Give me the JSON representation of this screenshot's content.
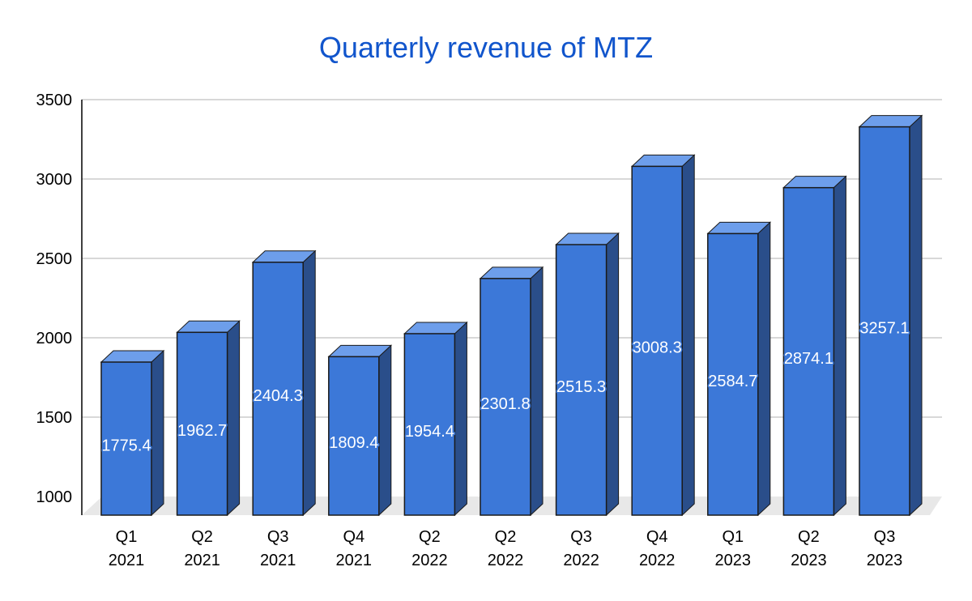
{
  "chart_data": {
    "type": "bar",
    "title": "Quarterly revenue of MTZ",
    "categories": [
      [
        "Q1",
        "2021"
      ],
      [
        "Q2",
        "2021"
      ],
      [
        "Q3",
        "2021"
      ],
      [
        "Q4",
        "2021"
      ],
      [
        "Q2",
        "2022"
      ],
      [
        "Q2",
        "2022"
      ],
      [
        "Q3",
        "2022"
      ],
      [
        "Q4",
        "2022"
      ],
      [
        "Q1",
        "2023"
      ],
      [
        "Q2",
        "2023"
      ],
      [
        "Q3",
        "2023"
      ]
    ],
    "values": [
      1775.4,
      1962.7,
      2404.3,
      1809.4,
      1954.4,
      2301.8,
      2515.3,
      3008.3,
      2584.7,
      2874.1,
      3257.1
    ],
    "data_labels": [
      "1775.4",
      "1962.7",
      "2404.3",
      "1809.4",
      "1954.4",
      "2301.8",
      "2515.3",
      "3008.3",
      "2584.7",
      "2874.1",
      "3257.1"
    ],
    "ylim": [
      1000,
      3500
    ],
    "yticks": [
      "1000",
      "1500",
      "2000",
      "2500",
      "3000",
      "3500"
    ],
    "xlabel": "",
    "ylabel": "",
    "grid": true,
    "legend": "none",
    "style": "3d-columns",
    "colors": {
      "bar_front": "#3c78d8",
      "bar_top": "#6d9eeb",
      "bar_side": "#2a4e8a",
      "bar_outline": "#1a1a1a",
      "title": "#1155cc",
      "grid": "#cccccc",
      "floor": "#e8e8e8"
    }
  }
}
